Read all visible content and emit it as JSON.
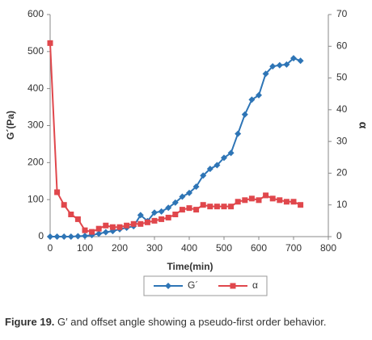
{
  "chart_data": {
    "type": "line",
    "xlabel": "Time(min)",
    "ylabel": "G´(Pa)",
    "y2label": "α",
    "x": [
      0,
      20,
      40,
      60,
      80,
      100,
      120,
      140,
      160,
      180,
      200,
      220,
      240,
      260,
      280,
      300,
      320,
      340,
      360,
      380,
      400,
      420,
      440,
      460,
      480,
      500,
      520,
      540,
      560,
      580,
      600,
      620,
      640,
      660,
      680,
      700,
      720
    ],
    "series": [
      {
        "name": "G´",
        "color": "#2e75b6",
        "marker": "diamond",
        "values": [
          0,
          0,
          0,
          0,
          1,
          2,
          4,
          8,
          12,
          15,
          20,
          24,
          28,
          58,
          42,
          65,
          68,
          78,
          92,
          108,
          118,
          135,
          165,
          183,
          193,
          213,
          226,
          278,
          330,
          370,
          382,
          440,
          460,
          463,
          465,
          482,
          475
        ]
      },
      {
        "name": "α",
        "color": "#e0474c",
        "marker": "square",
        "axis": "y2",
        "values": [
          61,
          14,
          10,
          7,
          5.5,
          2,
          1.5,
          2.5,
          3.5,
          3,
          3,
          3.5,
          4,
          4,
          4.5,
          5,
          5.5,
          6,
          7,
          8.5,
          9,
          8.5,
          10,
          9.5,
          9.5,
          9.5,
          9.5,
          11,
          11.5,
          12,
          11.5,
          13,
          12,
          11.5,
          11,
          11,
          10
        ]
      }
    ],
    "xlim": [
      0,
      800
    ],
    "xticks": [
      0,
      100,
      200,
      300,
      400,
      500,
      600,
      700,
      800
    ],
    "ylim": [
      0,
      600
    ],
    "yticks": [
      0,
      100,
      200,
      300,
      400,
      500,
      600
    ],
    "y2lim": [
      0,
      70
    ],
    "y2ticks": [
      0,
      10,
      20,
      30,
      40,
      50,
      60,
      70
    ],
    "grid": false,
    "legend": "bottom"
  },
  "caption_label": "Figure 19.",
  "caption_text": "G′ and offset angle showing a pseudo-first order behavior."
}
